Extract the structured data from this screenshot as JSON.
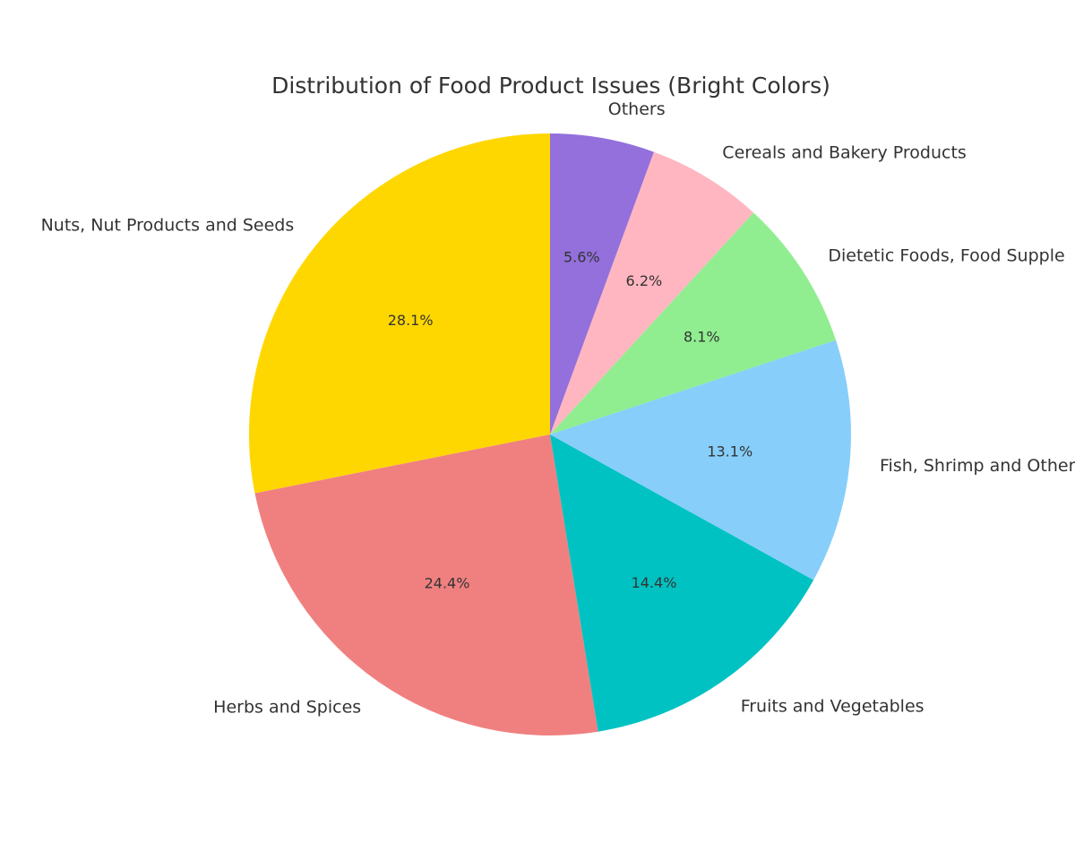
{
  "chart_data": {
    "type": "pie",
    "title": "Distribution of Food Product Issues (Bright Colors)",
    "start_angle_deg": 90,
    "direction": "counterclockwise",
    "slices": [
      {
        "label": "Nuts, Nut Products and Seeds",
        "value": 28.1,
        "pct_label": "28.1%",
        "color": "#FFD700"
      },
      {
        "label": "Herbs and Spices",
        "value": 24.4,
        "pct_label": "24.4%",
        "color": "#F08080"
      },
      {
        "label": "Fruits and Vegetables",
        "value": 14.4,
        "pct_label": "14.4%",
        "color": "#00C2C2"
      },
      {
        "label": "Fish, Shrimp and Other",
        "value": 13.1,
        "pct_label": "13.1%",
        "color": "#87CEFA"
      },
      {
        "label": "Dietetic Foods, Food Supple",
        "value": 8.1,
        "pct_label": "8.1%",
        "color": "#90EE90"
      },
      {
        "label": "Cereals and Bakery Products",
        "value": 6.2,
        "pct_label": "6.2%",
        "color": "#FFB6C1"
      },
      {
        "label": "Others",
        "value": 5.6,
        "pct_label": "5.6%",
        "color": "#9370DB"
      }
    ]
  }
}
